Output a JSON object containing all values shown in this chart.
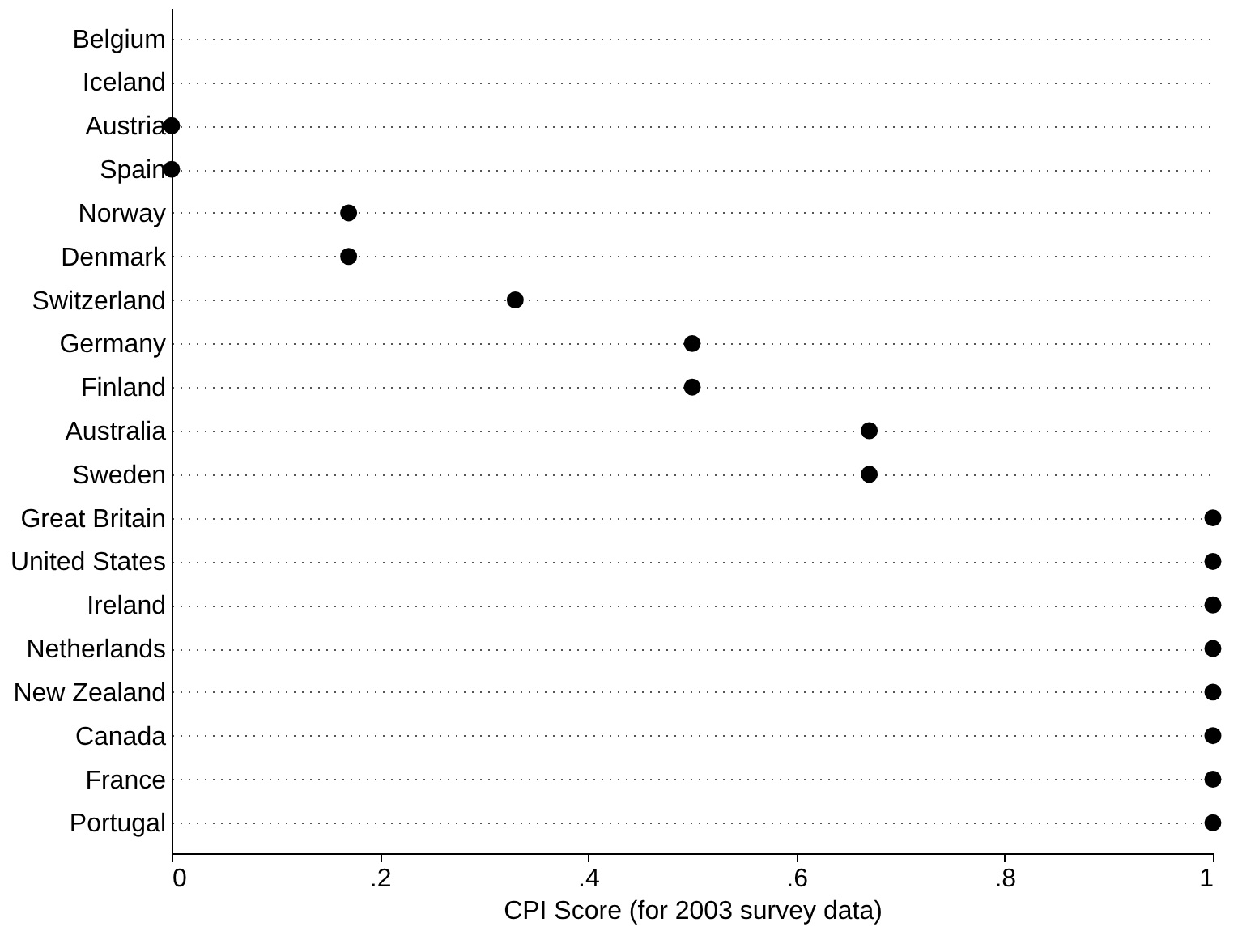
{
  "chart_data": {
    "type": "scatter",
    "orientation": "horizontal",
    "xlabel": "CPI Score (for 2003 survey data)",
    "categories": [
      "Belgium",
      "Iceland",
      "Austria",
      "Spain",
      "Norway",
      "Denmark",
      "Switzerland",
      "Germany",
      "Finland",
      "Australia",
      "Sweden",
      "Great Britain",
      "United States",
      "Ireland",
      "Netherlands",
      "New Zealand",
      "Canada",
      "France",
      "Portugal"
    ],
    "values": [
      null,
      null,
      0,
      0,
      0.17,
      0.17,
      0.33,
      0.5,
      0.5,
      0.67,
      0.67,
      1,
      1,
      1,
      1,
      1,
      1,
      1,
      1
    ],
    "color": "#000000",
    "marker": "circle",
    "xlim": [
      0,
      1
    ],
    "xticks": [
      0,
      {
        "value": 0.2,
        "label": ".2"
      },
      {
        "value": 0.4,
        "label": ".4"
      },
      {
        "value": 0.6,
        "label": ".6"
      },
      {
        "value": 0.8,
        "label": ".8"
      },
      1
    ],
    "grid": "y"
  }
}
